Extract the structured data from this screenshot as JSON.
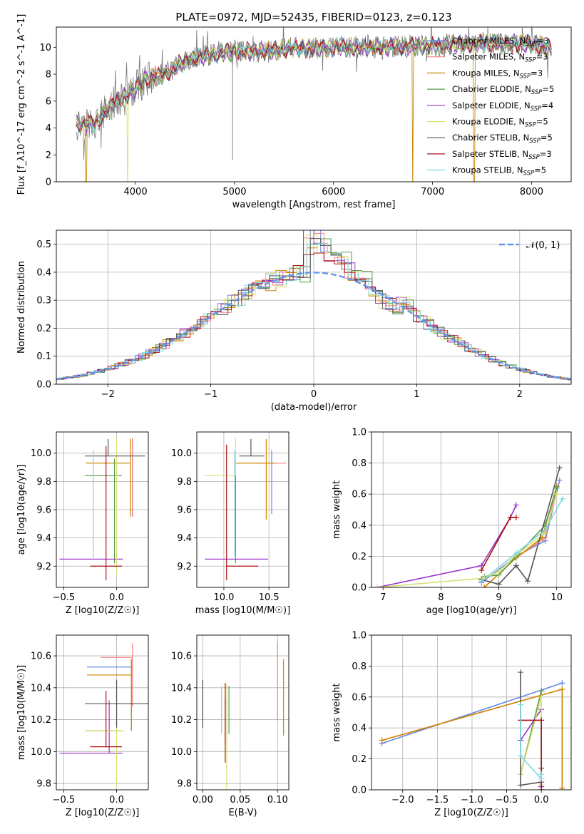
{
  "figure": {
    "title": "PLATE=0972, MJD=52435, FIBERID=0123, z=0.123"
  },
  "palette": {
    "Chabrier MILES": "#6688dd",
    "Salpeter MILES": "#ff7f7f",
    "Kroupa MILES": "#cc8800",
    "Chabrier ELODIE": "#5a9e4b",
    "Salpeter ELODIE": "#9932cc",
    "Kroupa ELODIE": "#d8e070",
    "Chabrier STELIB": "#555555",
    "Salpeter STELIB": "#aa1111",
    "Kroupa STELIB": "#80d8e0",
    "data": "#777777",
    "gauss": "#6495ed"
  },
  "chart_data": [
    {
      "id": "spectrum",
      "type": "line",
      "xlabel": "wavelength [Angstrom, rest frame]",
      "ylabel": "Flux [f_λ10^-17 erg cm^-2 s^-1 A^-1]",
      "xlim": [
        3200,
        8400
      ],
      "ylim": [
        0,
        11.5
      ],
      "xticks": [
        4000,
        5000,
        6000,
        7000,
        8000
      ],
      "yticks": [
        0,
        2,
        4,
        6,
        8,
        10
      ],
      "continuum_knots": {
        "wavelength": [
          3400,
          3600,
          3800,
          3950,
          4100,
          4300,
          4500,
          4800,
          5000,
          5300,
          5600,
          6000,
          6500,
          7000,
          7500,
          8000,
          8200
        ],
        "flux": [
          4.3,
          4.4,
          6.0,
          6.6,
          7.6,
          8.0,
          9.0,
          9.5,
          9.7,
          9.7,
          9.9,
          10.0,
          10.0,
          10.1,
          10.3,
          10.2,
          9.9
        ]
      },
      "legend": [
        {
          "name": "Chabrier MILES",
          "nssp": 3
        },
        {
          "name": "Salpeter MILES",
          "nssp": 3
        },
        {
          "name": "Kroupa MILES",
          "nssp": 3
        },
        {
          "name": "Chabrier ELODIE",
          "nssp": 5
        },
        {
          "name": "Salpeter ELODIE",
          "nssp": 4
        },
        {
          "name": "Kroupa ELODIE",
          "nssp": 5
        },
        {
          "name": "Chabrier STELIB",
          "nssp": 5
        },
        {
          "name": "Salpeter STELIB",
          "nssp": 3
        },
        {
          "name": "Kroupa STELIB",
          "nssp": 5
        }
      ],
      "dips": [
        {
          "wavelength": 3500,
          "series": "Kroupa MILES"
        },
        {
          "wavelength": 3920,
          "series": "Kroupa ELODIE"
        },
        {
          "wavelength": 4980,
          "series": "data"
        },
        {
          "wavelength": 6800,
          "series": "Kroupa MILES"
        },
        {
          "wavelength": 7420,
          "series": "Kroupa MILES"
        }
      ]
    },
    {
      "id": "residuals",
      "type": "histogram",
      "xlabel": "(data-model)/error",
      "ylabel": "Normed distribution",
      "xlim": [
        -2.5,
        2.5
      ],
      "ylim": [
        0,
        0.55
      ],
      "xticks": [
        -2,
        -1,
        0,
        1,
        2
      ],
      "yticks": [
        0.0,
        0.1,
        0.2,
        0.3,
        0.4,
        0.5
      ],
      "bin_width": 0.1,
      "gauss_label": "𝒩(0, 1)",
      "peak_excess": [
        0.12,
        0.1,
        0.07,
        0.05,
        0.03,
        0.02,
        0.0,
        -0.02,
        -0.02,
        0.02
      ]
    },
    {
      "id": "age-vs-Z",
      "type": "errorbar",
      "xlabel": "Z [log10(Z/Z☉)]",
      "ylabel": "age  [log10(age/yr)]",
      "xlim": [
        -0.57,
        0.3
      ],
      "ylim": [
        9.05,
        10.15
      ],
      "xticks": [
        -0.5,
        0.0
      ],
      "yticks": [
        9.2,
        9.4,
        9.6,
        9.8,
        10.0
      ],
      "points": [
        {
          "series": "Chabrier MILES",
          "x": 0.15,
          "xerr": [
            0.0,
            0.0
          ],
          "y": 9.97,
          "yerr": [
            0.42,
            0.12
          ]
        },
        {
          "series": "Salpeter MILES",
          "x": 0.15,
          "xerr": [
            0.0,
            0.0
          ],
          "y": 9.99,
          "yerr": [
            0.44,
            0.12
          ]
        },
        {
          "series": "Kroupa MILES",
          "x": 0.13,
          "xerr": [
            0.42,
            0.0
          ],
          "y": 9.93,
          "yerr": [
            0.38,
            0.17
          ]
        },
        {
          "series": "Chabrier ELODIE",
          "x": -0.02,
          "xerr": [
            0.28,
            0.07
          ],
          "y": 9.84,
          "yerr": [
            0.62,
            0.12
          ]
        },
        {
          "series": "Salpeter ELODIE",
          "x": -0.07,
          "xerr": [
            0.47,
            0.13
          ],
          "y": 9.25,
          "yerr": [
            0.0,
            0.0
          ]
        },
        {
          "series": "Kroupa ELODIE",
          "x": 0.0,
          "xerr": [
            0.0,
            0.0
          ],
          "y": 9.84,
          "yerr": [
            0.7,
            0.27
          ]
        },
        {
          "series": "Chabrier STELIB",
          "x": -0.08,
          "xerr": [
            0.22,
            0.35
          ],
          "y": 9.98,
          "yerr": [
            0.0,
            0.12
          ]
        },
        {
          "series": "Salpeter STELIB",
          "x": -0.1,
          "xerr": [
            0.15,
            0.15
          ],
          "y": 9.2,
          "yerr": [
            0.1,
            0.85
          ]
        },
        {
          "series": "Kroupa STELIB",
          "x": -0.22,
          "xerr": [
            0.0,
            0.0
          ],
          "y": 9.97,
          "yerr": [
            0.72,
            0.05
          ]
        }
      ]
    },
    {
      "id": "age-vs-mass",
      "type": "errorbar",
      "xlabel": "mass [log10(M/M☉)]",
      "xlim": [
        9.7,
        10.72
      ],
      "ylim": [
        9.05,
        10.15
      ],
      "xticks": [
        10.0,
        10.5
      ],
      "yticks": [
        9.2,
        9.4,
        9.6,
        9.8,
        10.0
      ],
      "points": [
        {
          "series": "Chabrier MILES",
          "x": 10.53,
          "xerr": [
            0.0,
            0.0
          ],
          "y": 9.97,
          "yerr": [
            0.4,
            0.05
          ]
        },
        {
          "series": "Salpeter MILES",
          "x": 10.62,
          "xerr": [
            0.3,
            0.07
          ],
          "y": 9.93,
          "yerr": [
            0.0,
            0.0
          ]
        },
        {
          "series": "Kroupa MILES",
          "x": 10.47,
          "xerr": [
            0.34,
            0.1
          ],
          "y": 9.93,
          "yerr": [
            0.4,
            0.17
          ]
        },
        {
          "series": "Chabrier ELODIE",
          "x": 10.13,
          "xerr": [
            0.0,
            0.0
          ],
          "y": 9.84,
          "yerr": [
            0.62,
            0.12
          ]
        },
        {
          "series": "Salpeter ELODIE",
          "x": 10.14,
          "xerr": [
            0.35,
            0.35
          ],
          "y": 9.25,
          "yerr": [
            0.0,
            0.0
          ]
        },
        {
          "series": "Kroupa ELODIE",
          "x": 10.13,
          "xerr": [
            0.34,
            0.0
          ],
          "y": 9.84,
          "yerr": [
            0.0,
            0.27
          ]
        },
        {
          "series": "Chabrier STELIB",
          "x": 10.3,
          "xerr": [
            0.13,
            0.15
          ],
          "y": 9.98,
          "yerr": [
            0.0,
            0.12
          ]
        },
        {
          "series": "Salpeter STELIB",
          "x": 10.03,
          "xerr": [
            0.0,
            0.35
          ],
          "y": 9.2,
          "yerr": [
            0.1,
            0.86
          ]
        },
        {
          "series": "Kroupa STELIB",
          "x": 10.12,
          "xerr": [
            0.0,
            0.0
          ],
          "y": 9.97,
          "yerr": [
            0.7,
            0.05
          ]
        }
      ]
    },
    {
      "id": "weight-vs-age",
      "type": "line",
      "xlabel": "age  [log10(age/yr)]",
      "ylabel": "mass weight",
      "xlim": [
        6.8,
        10.25
      ],
      "ylim": [
        0.0,
        1.0
      ],
      "xticks": [
        7,
        8,
        9,
        10
      ],
      "yticks": [
        0.0,
        0.2,
        0.4,
        0.6,
        0.8,
        1.0
      ],
      "series": [
        {
          "name": "Chabrier MILES",
          "x": [
            8.7,
            9.3,
            9.8,
            10.05
          ],
          "y": [
            0.03,
            0.2,
            0.3,
            0.69
          ]
        },
        {
          "name": "Salpeter MILES",
          "x": [
            8.75,
            9.3,
            9.8,
            10.0
          ],
          "y": [
            0.0,
            0.19,
            0.32,
            0.65
          ]
        },
        {
          "name": "Kroupa MILES",
          "x": [
            8.75,
            9.3,
            9.75,
            10.0
          ],
          "y": [
            0.0,
            0.19,
            0.32,
            0.65
          ]
        },
        {
          "name": "Chabrier ELODIE",
          "x": [
            8.75,
            9.0,
            9.3,
            9.8,
            10.0
          ],
          "y": [
            0.07,
            0.08,
            0.2,
            0.4,
            0.64
          ]
        },
        {
          "name": "Salpeter ELODIE",
          "x": [
            6.9,
            8.7,
            9.2,
            9.3
          ],
          "y": [
            0.0,
            0.14,
            0.45,
            0.53
          ]
        },
        {
          "name": "Kroupa ELODIE",
          "x": [
            6.9,
            8.75,
            9.0,
            9.3,
            9.8,
            10.0
          ],
          "y": [
            0.0,
            0.06,
            0.1,
            0.21,
            0.35,
            0.6
          ]
        },
        {
          "name": "Chabrier STELIB",
          "x": [
            8.7,
            9.0,
            9.3,
            9.5,
            10.05
          ],
          "y": [
            0.05,
            0.02,
            0.14,
            0.04,
            0.77
          ]
        },
        {
          "name": "Salpeter STELIB",
          "x": [
            8.7,
            9.2,
            9.3
          ],
          "y": [
            0.11,
            0.45,
            0.45
          ]
        },
        {
          "name": "Kroupa STELIB",
          "x": [
            8.7,
            9.3,
            9.8,
            10.1
          ],
          "y": [
            0.04,
            0.22,
            0.37,
            0.57
          ]
        }
      ]
    },
    {
      "id": "mass-vs-Z",
      "type": "errorbar",
      "xlabel": "Z [log10(Z/Z☉)]",
      "ylabel": "mass [log10(M/M☉)]",
      "xlim": [
        -0.57,
        0.3
      ],
      "ylim": [
        9.76,
        10.73
      ],
      "xticks": [
        -0.5,
        0.0
      ],
      "yticks": [
        9.8,
        10.0,
        10.2,
        10.4,
        10.6
      ],
      "points": [
        {
          "series": "Chabrier MILES",
          "x": 0.14,
          "xerr": [
            0.42,
            0.0
          ],
          "y": 10.53,
          "yerr": [
            0.4,
            0.05
          ]
        },
        {
          "series": "Salpeter MILES",
          "x": 0.15,
          "xerr": [
            0.3,
            0.0
          ],
          "y": 10.59,
          "yerr": [
            0.31,
            0.09
          ]
        },
        {
          "series": "Kroupa MILES",
          "x": 0.14,
          "xerr": [
            0.42,
            0.0
          ],
          "y": 10.48,
          "yerr": [
            0.35,
            0.1
          ]
        },
        {
          "series": "Chabrier ELODIE",
          "x": -0.02,
          "xerr": [
            0.28,
            0.07
          ],
          "y": 10.13,
          "yerr": [
            0.0,
            0.0
          ]
        },
        {
          "series": "Salpeter ELODIE",
          "x": -0.07,
          "xerr": [
            0.47,
            0.13
          ],
          "y": 9.99,
          "yerr": [
            0.0,
            0.33
          ]
        },
        {
          "series": "Kroupa ELODIE",
          "x": 0.0,
          "xerr": [
            0.3,
            0.07
          ],
          "y": 10.13,
          "yerr": [
            0.35,
            0.28
          ]
        },
        {
          "series": "Chabrier STELIB",
          "x": 0.0,
          "xerr": [
            0.3,
            0.3
          ],
          "y": 10.3,
          "yerr": [
            0.15,
            0.15
          ]
        },
        {
          "series": "Salpeter STELIB",
          "x": -0.1,
          "xerr": [
            0.15,
            0.15
          ],
          "y": 10.03,
          "yerr": [
            0.0,
            0.35
          ]
        },
        {
          "series": "Kroupa STELIB",
          "x": -0.22,
          "xerr": [
            0.0,
            0.0
          ],
          "y": 10.12,
          "yerr": [
            0.0,
            0.0
          ]
        }
      ]
    },
    {
      "id": "mass-vs-EBV",
      "type": "errorbar",
      "xlabel": "E(B-V)",
      "xlim": [
        -0.008,
        0.115
      ],
      "ylim": [
        9.76,
        10.73
      ],
      "xticks": [
        0.0,
        0.05,
        0.1
      ],
      "xticklabels": [
        "0.00",
        "0.05",
        "0.10"
      ],
      "yticks": [
        9.8,
        10.0,
        10.2,
        10.4,
        10.6
      ],
      "points": [
        {
          "series": "Chabrier MILES",
          "x": 0.0,
          "xerr": [
            0.0,
            0.0
          ],
          "y": 10.3,
          "yerr": [
            0.15,
            0.15
          ]
        },
        {
          "series": "Salpeter MILES",
          "x": 0.1,
          "xerr": [
            0.0,
            0.0
          ],
          "y": 10.5,
          "yerr": [
            0.31,
            0.19
          ]
        },
        {
          "series": "Kroupa MILES",
          "x": 0.108,
          "xerr": [
            0.0,
            0.0
          ],
          "y": 10.35,
          "yerr": [
            0.25,
            0.23
          ]
        },
        {
          "series": "Chabrier ELODIE",
          "x": 0.035,
          "xerr": [
            0.0,
            0.0
          ],
          "y": 10.26,
          "yerr": [
            0.15,
            0.15
          ]
        },
        {
          "series": "Salpeter ELODIE",
          "x": 0.03,
          "xerr": [
            0.0,
            0.0
          ],
          "y": 10.19,
          "yerr": [
            0.14,
            0.14
          ]
        },
        {
          "series": "Kroupa ELODIE",
          "x": 0.032,
          "xerr": [
            0.0,
            0.0
          ],
          "y": 10.07,
          "yerr": [
            0.35,
            0.35
          ]
        },
        {
          "series": "Chabrier STELIB",
          "x": 0.0,
          "xerr": [
            0.0,
            0.0
          ],
          "y": 10.3,
          "yerr": [
            0.15,
            0.15
          ]
        },
        {
          "series": "Salpeter STELIB",
          "x": 0.03,
          "xerr": [
            0.0,
            0.0
          ],
          "y": 10.18,
          "yerr": [
            0.25,
            0.25
          ]
        },
        {
          "series": "Kroupa STELIB",
          "x": 0.025,
          "xerr": [
            0.0,
            0.0
          ],
          "y": 10.26,
          "yerr": [
            0.15,
            0.15
          ]
        }
      ]
    },
    {
      "id": "weight-vs-Z",
      "type": "line",
      "xlabel": "Z [log10(Z/Z☉)]",
      "ylabel": "mass weight",
      "xlim": [
        -2.45,
        0.43
      ],
      "ylim": [
        0.0,
        1.0
      ],
      "xticks": [
        -2.0,
        -1.5,
        -1.0,
        -0.5,
        0.0
      ],
      "yticks": [
        0.0,
        0.2,
        0.4,
        0.6,
        0.8,
        1.0
      ],
      "series": [
        {
          "name": "Chabrier MILES",
          "x": [
            -2.3,
            0.3
          ],
          "y": [
            0.3,
            0.69
          ]
        },
        {
          "name": "Salpeter MILES",
          "x": [
            -2.3,
            0.3,
            0.3
          ],
          "y": [
            0.32,
            0.65,
            0.01
          ]
        },
        {
          "name": "Kroupa MILES",
          "x": [
            -2.3,
            0.3,
            0.3
          ],
          "y": [
            0.32,
            0.65,
            0.01
          ]
        },
        {
          "name": "Chabrier ELODIE",
          "x": [
            -0.3,
            0.0,
            0.0
          ],
          "y": [
            0.1,
            0.64,
            0.03
          ]
        },
        {
          "name": "Salpeter ELODIE",
          "x": [
            -0.3,
            0.0,
            0.0
          ],
          "y": [
            0.32,
            0.52,
            0.02
          ]
        },
        {
          "name": "Kroupa ELODIE",
          "x": [
            -0.3,
            0.0,
            0.0
          ],
          "y": [
            0.1,
            0.6,
            0.03
          ]
        },
        {
          "name": "Chabrier STELIB",
          "x": [
            -0.3,
            -0.3,
            0.0,
            0.0
          ],
          "y": [
            0.76,
            0.03,
            0.05,
            0.14
          ]
        },
        {
          "name": "Salpeter STELIB",
          "x": [
            -0.3,
            0.0,
            0.0
          ],
          "y": [
            0.45,
            0.45,
            0.0
          ]
        },
        {
          "name": "Kroupa STELIB",
          "x": [
            -0.3,
            -0.3,
            0.0,
            0.0
          ],
          "y": [
            0.55,
            0.22,
            0.07,
            0.1
          ]
        }
      ]
    }
  ]
}
